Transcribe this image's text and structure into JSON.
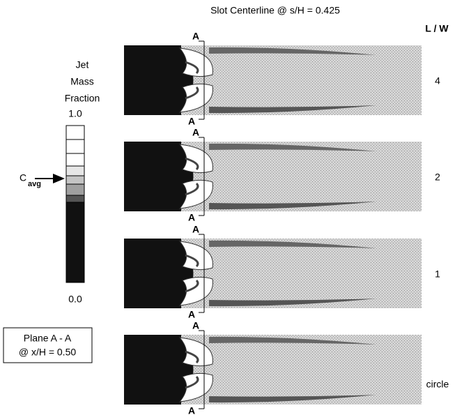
{
  "title": "Slot Centerline @ s/H = 0.425",
  "ratio_header": "L / W",
  "legend": {
    "title_lines": [
      "Jet",
      "Mass",
      "Fraction"
    ],
    "max_label": "1.0",
    "min_label": "0.0",
    "marker": {
      "symbol": "C",
      "subscript": "avg"
    }
  },
  "plane_box": {
    "line1": "Plane  A - A",
    "line2": "@ x/H = 0.50"
  },
  "panels": [
    {
      "ratio": "4",
      "section_top": "A",
      "section_bottom": "A"
    },
    {
      "ratio": "2",
      "section_top": "A",
      "section_bottom": "A"
    },
    {
      "ratio": "1",
      "section_top": "A",
      "section_bottom": "A"
    },
    {
      "ratio": "circle",
      "section_top": "A",
      "section_bottom": "A"
    }
  ]
}
